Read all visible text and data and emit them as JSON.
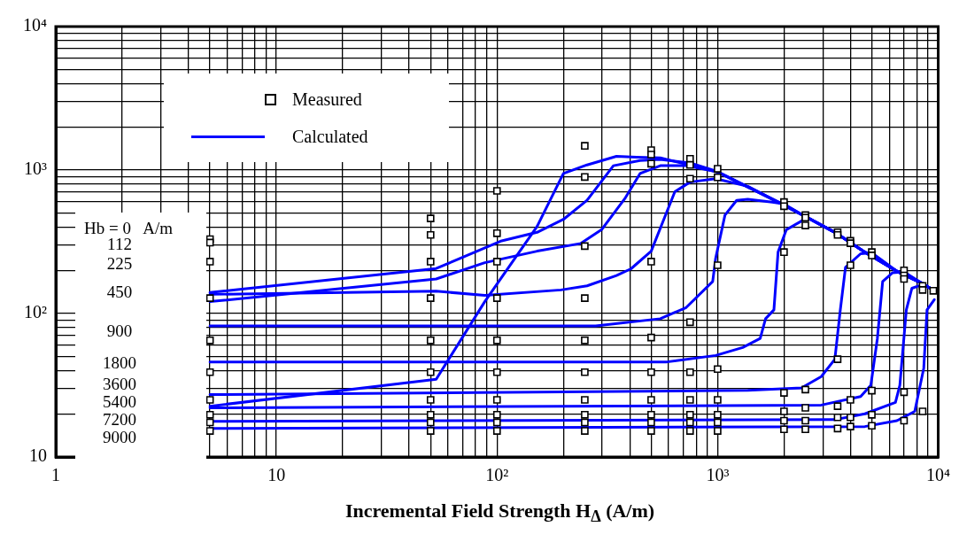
{
  "chart_data": {
    "type": "line",
    "xlabel": "Incremental Field Strength  H$_{Δ}$ (A/m)",
    "log": "xy",
    "grid": true,
    "legend": "top left",
    "xlim": [
      1,
      10000
    ],
    "xticks": [
      {
        "value": 1,
        "label": "1"
      },
      {
        "value": 2,
        "label": null
      },
      {
        "value": 3,
        "label": null
      },
      {
        "value": 4,
        "label": null
      },
      {
        "value": 5,
        "label": null
      },
      {
        "value": 6,
        "label": null
      },
      {
        "value": 7,
        "label": null
      },
      {
        "value": 8,
        "label": null
      },
      {
        "value": 9,
        "label": null
      },
      {
        "value": 10,
        "label": "10"
      },
      {
        "value": 20,
        "label": null
      },
      {
        "value": 30,
        "label": null
      },
      {
        "value": 40,
        "label": null
      },
      {
        "value": 50,
        "label": null
      },
      {
        "value": 60,
        "label": null
      },
      {
        "value": 70,
        "label": null
      },
      {
        "value": 80,
        "label": null
      },
      {
        "value": 90,
        "label": null
      },
      {
        "value": 100,
        "label": "10²"
      },
      {
        "value": 200,
        "label": null
      },
      {
        "value": 300,
        "label": null
      },
      {
        "value": 400,
        "label": null
      },
      {
        "value": 500,
        "label": null
      },
      {
        "value": 600,
        "label": null
      },
      {
        "value": 700,
        "label": null
      },
      {
        "value": 800,
        "label": null
      },
      {
        "value": 900,
        "label": null
      },
      {
        "value": 1000,
        "label": "10³"
      },
      {
        "value": 2000,
        "label": null
      },
      {
        "value": 3000,
        "label": null
      },
      {
        "value": 4000,
        "label": null
      },
      {
        "value": 5000,
        "label": null
      },
      {
        "value": 6000,
        "label": null
      },
      {
        "value": 7000,
        "label": null
      },
      {
        "value": 8000,
        "label": null
      },
      {
        "value": 9000,
        "label": null
      },
      {
        "value": 10000,
        "label": "10⁴"
      }
    ],
    "ylim": [
      10,
      10000
    ],
    "yticks": [
      {
        "value": 10,
        "label": "10"
      },
      {
        "value": 20,
        "label": null
      },
      {
        "value": 30,
        "label": null
      },
      {
        "value": 40,
        "label": null
      },
      {
        "value": 50,
        "label": null
      },
      {
        "value": 60,
        "label": null
      },
      {
        "value": 70,
        "label": null
      },
      {
        "value": 80,
        "label": null
      },
      {
        "value": 90,
        "label": null
      },
      {
        "value": 100,
        "label": "10²"
      },
      {
        "value": 200,
        "label": null
      },
      {
        "value": 300,
        "label": null
      },
      {
        "value": 400,
        "label": null
      },
      {
        "value": 500,
        "label": null
      },
      {
        "value": 600,
        "label": null
      },
      {
        "value": 700,
        "label": null
      },
      {
        "value": 800,
        "label": null
      },
      {
        "value": 900,
        "label": null
      },
      {
        "value": 1000,
        "label": "10³"
      },
      {
        "value": 2000,
        "label": null
      },
      {
        "value": 3000,
        "label": null
      },
      {
        "value": 4000,
        "label": null
      },
      {
        "value": 5000,
        "label": null
      },
      {
        "value": 6000,
        "label": null
      },
      {
        "value": 7000,
        "label": null
      },
      {
        "value": 8000,
        "label": null
      },
      {
        "value": 9000,
        "label": null
      },
      {
        "value": 10000,
        "label": "10⁴"
      }
    ],
    "annotations": [
      "Hb = 0   A/m",
      "112",
      "225",
      "450",
      "900",
      "1800",
      "3600",
      "5400",
      "7200",
      "9000"
    ],
    "series": [
      {
        "name": "Measured",
        "type": "scatter",
        "marker": "square",
        "color": "#000000",
        "x": [
          5,
          5,
          5,
          5,
          5,
          5,
          5,
          5,
          5,
          5,
          50,
          50,
          50,
          50,
          50,
          50,
          50,
          50,
          50,
          50,
          100,
          100,
          100,
          100,
          100,
          100,
          100,
          100,
          100,
          100,
          250,
          250,
          250,
          250,
          250,
          250,
          250,
          250,
          250,
          250,
          500,
          500,
          500,
          500,
          500,
          500,
          500,
          500,
          500,
          500,
          750,
          750,
          750,
          750,
          750,
          750,
          750,
          750,
          750,
          1000,
          1000,
          1000,
          1000,
          1000,
          1000,
          1000,
          1000,
          2000,
          2000,
          2000,
          2000,
          2000,
          2000,
          2000,
          2500,
          2500,
          2500,
          2500,
          2500,
          2500,
          2500,
          3500,
          3500,
          3500,
          3500,
          3500,
          3500,
          4000,
          4000,
          4000,
          4000,
          4000,
          4000,
          5000,
          5000,
          5000,
          5000,
          5000,
          7000,
          7000,
          7000,
          7000,
          7000,
          8500,
          8500,
          8500,
          9500
        ],
        "values": [
          330,
          312,
          230,
          128,
          65,
          39,
          25,
          19.7,
          17.4,
          15.2,
          460,
          353,
          230,
          128,
          65,
          39,
          25,
          19.7,
          17.4,
          15.2,
          716,
          363,
          230,
          128,
          65,
          39,
          25,
          19.7,
          17.4,
          15.2,
          1475,
          895,
          295,
          128,
          65,
          39,
          25,
          19.7,
          17.4,
          15.2,
          1375,
          1283,
          1107,
          230,
          68,
          39,
          25,
          19.7,
          17.4,
          15.2,
          1197,
          1086,
          871,
          87,
          39,
          25,
          19.7,
          17.4,
          15.2,
          1020,
          890,
          217,
          41,
          25,
          19.7,
          17.4,
          15.2,
          598,
          560,
          268,
          28,
          20.8,
          17.9,
          15.6,
          485,
          466,
          411,
          29.5,
          22,
          17.9,
          15.6,
          368,
          353,
          48,
          22.6,
          18.9,
          15.8,
          321,
          309,
          217,
          25,
          18.9,
          16.3,
          268,
          254,
          29,
          19.7,
          16.5,
          200,
          184,
          174,
          28.3,
          17.9,
          156,
          146,
          20.8,
          144
        ]
      },
      {
        "name": "Calculated",
        "marker": "none",
        "color": "#0000ff",
        "x": [
          5,
          53,
          88,
          152,
          200,
          256,
          348,
          430,
          550,
          990,
          1880,
          2430,
          3400,
          4650,
          6500,
          8600,
          9600
        ],
        "values": [
          22.6,
          34.8,
          121,
          405,
          946,
          1086,
          1247,
          1230,
          1215,
          973,
          598,
          485,
          368,
          268,
          197,
          160,
          144
        ]
      },
      {
        "type": "line",
        "marker": "none",
        "color": "#0000ff",
        "x": [
          5,
          53,
          105,
          152,
          200,
          256,
          337,
          445,
          550,
          750,
          1000,
          1880,
          2430,
          3400,
          4650,
          6500,
          8600,
          9600
        ],
        "values": [
          140,
          206,
          321,
          368,
          453,
          615,
          1072,
          1165,
          1185,
          1120,
          975,
          598,
          485,
          368,
          268,
          197,
          160,
          144
        ]
      },
      {
        "type": "line",
        "marker": "none",
        "color": "#0000ff",
        "x": [
          5,
          53,
          88,
          152,
          240,
          298,
          382,
          445,
          550,
          720,
          1000,
          1880,
          2430,
          3400,
          4650,
          6500,
          8600,
          9600
        ],
        "values": [
          121,
          174,
          226,
          272,
          308,
          384,
          641,
          946,
          1072,
          1072,
          970,
          598,
          485,
          368,
          268,
          197,
          160,
          144
        ]
      },
      {
        "type": "line",
        "marker": "none",
        "color": "#0000ff",
        "x": [
          5,
          53,
          88,
          195,
          256,
          348,
          405,
          500,
          640,
          750,
          980,
          1370,
          1880,
          2430,
          3400,
          4650,
          6500,
          8600,
          9600
        ],
        "values": [
          136,
          143,
          134,
          146,
          156,
          184,
          205,
          272,
          706,
          824,
          871,
          770,
          598,
          485,
          368,
          268,
          197,
          160,
          144
        ]
      },
      {
        "type": "line",
        "marker": "none",
        "color": "#0000ff",
        "x": [
          5,
          280,
          550,
          720,
          950,
          980,
          1080,
          1220,
          1370,
          1770,
          2000,
          2430,
          3400,
          4650,
          6500,
          8600,
          9600
        ],
        "values": [
          82,
          82,
          92,
          110,
          167,
          243,
          485,
          615,
          625,
          598,
          580,
          485,
          368,
          268,
          197,
          160,
          144
        ]
      },
      {
        "type": "line",
        "marker": "none",
        "color": "#0000ff",
        "x": [
          5,
          590,
          980,
          1300,
          1560,
          1650,
          1800,
          1880,
          2050,
          2400,
          2500,
          3400,
          4650,
          6500,
          8600,
          9600
        ],
        "values": [
          46,
          46,
          51,
          58,
          67,
          92,
          106,
          268,
          384,
          441,
          475,
          368,
          268,
          197,
          160,
          144
        ]
      },
      {
        "type": "line",
        "marker": "none",
        "color": "#0000ff",
        "x": [
          5,
          1370,
          2400,
          2950,
          3400,
          3600,
          3800,
          4450,
          5000,
          6500,
          8600,
          9600
        ],
        "values": [
          27.2,
          29.1,
          30.3,
          36.3,
          48,
          106,
          210,
          261,
          265,
          197,
          160,
          144
        ]
      },
      {
        "type": "line",
        "marker": "none",
        "color": "#0000ff",
        "x": [
          5,
          2950,
          4450,
          4950,
          5300,
          5600,
          6200,
          7000,
          8600,
          9600
        ],
        "values": [
          22,
          23,
          26.4,
          31.6,
          67,
          167,
          192,
          195,
          160,
          144
        ]
      },
      {
        "type": "line",
        "marker": "none",
        "color": "#0000ff",
        "x": [
          5,
          3400,
          4650,
          6400,
          6700,
          7170,
          7600,
          8600,
          9600
        ],
        "values": [
          17.7,
          18.2,
          20,
          24,
          31.6,
          106,
          150,
          160,
          144
        ]
      },
      {
        "type": "line",
        "marker": "none",
        "color": "#0000ff",
        "x": [
          5,
          4650,
          6500,
          7830,
          8600,
          8900,
          9600
        ],
        "values": [
          15.8,
          16.3,
          17.9,
          20.8,
          41.6,
          106,
          125
        ]
      }
    ]
  }
}
